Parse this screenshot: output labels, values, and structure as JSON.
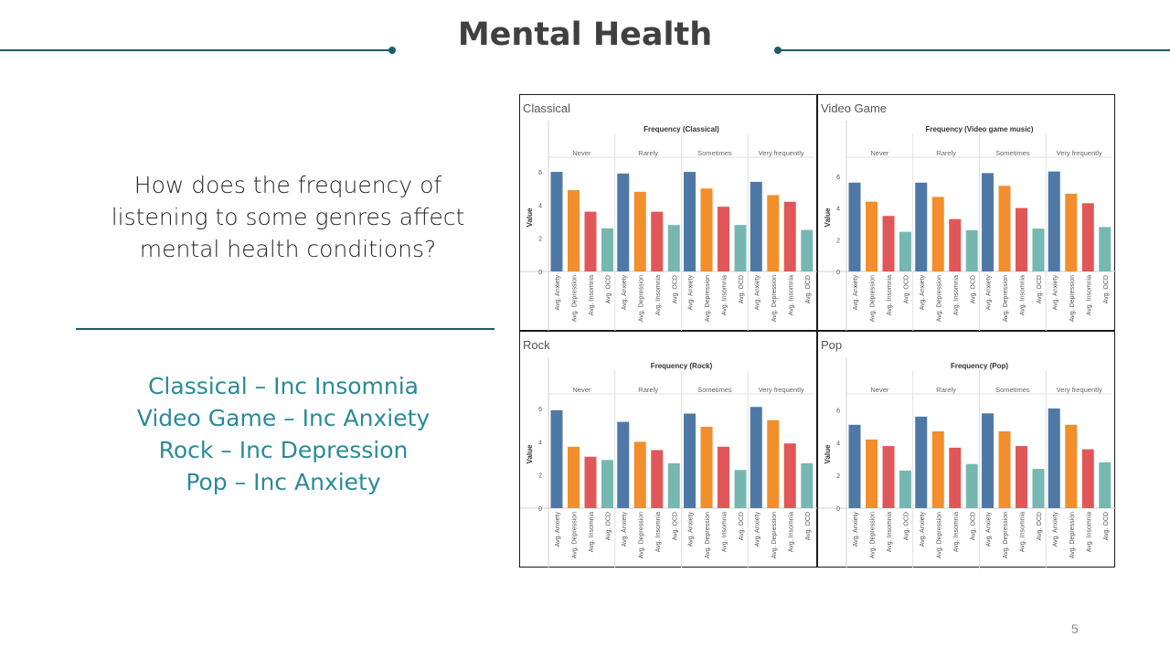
{
  "slide": {
    "title": "Mental Health",
    "question": "How does the frequency of listening to some genres affect mental health conditions?",
    "findings": [
      "Classical – Inc Insomnia",
      "Video Game – Inc Anxiety",
      "Rock – Inc Depression",
      "Pop – Inc Anxiety"
    ],
    "page_number": "5"
  },
  "colors": {
    "accent_line": "#1f5a6b",
    "findings_text": "#2a8a9a",
    "series": [
      "#4e79a7",
      "#f28e2b",
      "#e15759",
      "#76b7b2"
    ]
  },
  "chart_data": [
    {
      "type": "bar",
      "title": "Classical",
      "xlabel": "Frequency (Classical)",
      "ylabel": "Value",
      "ylim": [
        0,
        6.5
      ],
      "yticks": [
        0,
        2,
        4,
        6
      ],
      "groups": [
        "Never",
        "Rarely",
        "Sometimes",
        "Very frequently"
      ],
      "categories": [
        "Avg. Anxiety",
        "Avg. Depression",
        "Avg. Insomnia",
        "Avg. OCD"
      ],
      "values": [
        [
          6.0,
          4.9,
          3.6,
          2.6
        ],
        [
          5.9,
          4.8,
          3.6,
          2.8
        ],
        [
          6.0,
          5.0,
          3.9,
          2.8
        ],
        [
          5.4,
          4.6,
          4.2,
          2.5
        ]
      ]
    },
    {
      "type": "bar",
      "title": "Video Game",
      "xlabel": "Frequency (Video game music)",
      "ylabel": "Value",
      "ylim": [
        0,
        6.8
      ],
      "yticks": [
        0,
        2,
        4,
        6
      ],
      "groups": [
        "Never",
        "Rarely",
        "Sometimes",
        "Very frequently"
      ],
      "categories": [
        "Avg. Anxiety",
        "Avg. Depression",
        "Avg. Insomnia",
        "Avg. OCD"
      ],
      "values": [
        [
          5.6,
          4.4,
          3.5,
          2.5
        ],
        [
          5.6,
          4.7,
          3.3,
          2.6
        ],
        [
          6.2,
          5.4,
          4.0,
          2.7
        ],
        [
          6.3,
          4.9,
          4.3,
          2.8
        ]
      ]
    },
    {
      "type": "bar",
      "title": "Rock",
      "xlabel": "Frequency (Rock)",
      "ylabel": "Value",
      "ylim": [
        0,
        6.5
      ],
      "yticks": [
        0,
        2,
        4,
        6
      ],
      "groups": [
        "Never",
        "Rarely",
        "Sometimes",
        "Very frequently"
      ],
      "categories": [
        "Avg. Anxiety",
        "Avg. Depression",
        "Avg. Insomnia",
        "Avg. OCD"
      ],
      "values": [
        [
          5.9,
          3.7,
          3.1,
          2.9
        ],
        [
          5.2,
          4.0,
          3.5,
          2.7
        ],
        [
          5.7,
          4.9,
          3.7,
          2.3
        ],
        [
          6.1,
          5.3,
          3.9,
          2.7
        ]
      ]
    },
    {
      "type": "bar",
      "title": "Pop",
      "xlabel": "Frequency (Pop)",
      "ylabel": "Value",
      "ylim": [
        0,
        6.6
      ],
      "yticks": [
        0,
        2,
        4,
        6
      ],
      "groups": [
        "Never",
        "Rarely",
        "Sometimes",
        "Very frequently"
      ],
      "categories": [
        "Avg. Anxiety",
        "Avg. Depression",
        "Avg. Insomnia",
        "Avg. OCD"
      ],
      "values": [
        [
          5.1,
          4.2,
          3.8,
          2.3
        ],
        [
          5.6,
          4.7,
          3.7,
          2.7
        ],
        [
          5.8,
          4.7,
          3.8,
          2.4
        ],
        [
          6.1,
          5.1,
          3.6,
          2.8
        ]
      ]
    }
  ]
}
